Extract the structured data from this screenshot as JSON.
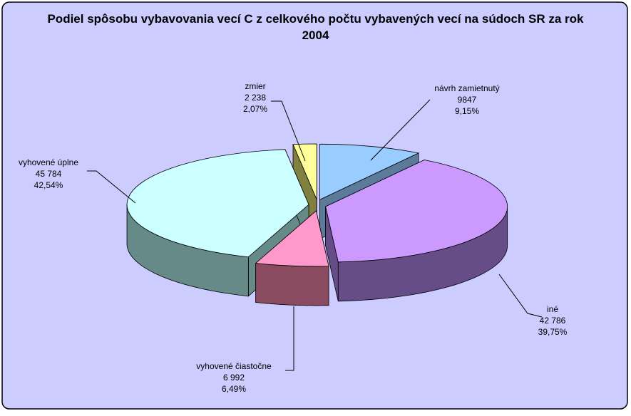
{
  "chart_data": {
    "type": "pie3d",
    "title": "Podiel spôsobu vybavovania vecí C z celkového počtu vybavených vecí na súdoch SR za rok 2004",
    "categories": [
      "návrh zamietnutý",
      "iné",
      "vyhovené čiastočne",
      "vyhovené úplne",
      "zmier"
    ],
    "values": [
      9847,
      42786,
      6992,
      45784,
      2238
    ],
    "value_labels": [
      "9847",
      "42 786",
      "6 992",
      "45 784",
      "2 238"
    ],
    "percents": [
      9.15,
      39.75,
      6.49,
      42.54,
      2.07
    ],
    "percent_labels": [
      "9,15%",
      "39,75%",
      "6,49%",
      "42,54%",
      "2,07%"
    ],
    "colors": [
      "#99ccff",
      "#cc99ff",
      "#ff99cc",
      "#ccffff",
      "#ffff99"
    ],
    "side_colors": [
      "#5c7a99",
      "#664d88",
      "#8a4a60",
      "#668a88",
      "#808040"
    ]
  }
}
